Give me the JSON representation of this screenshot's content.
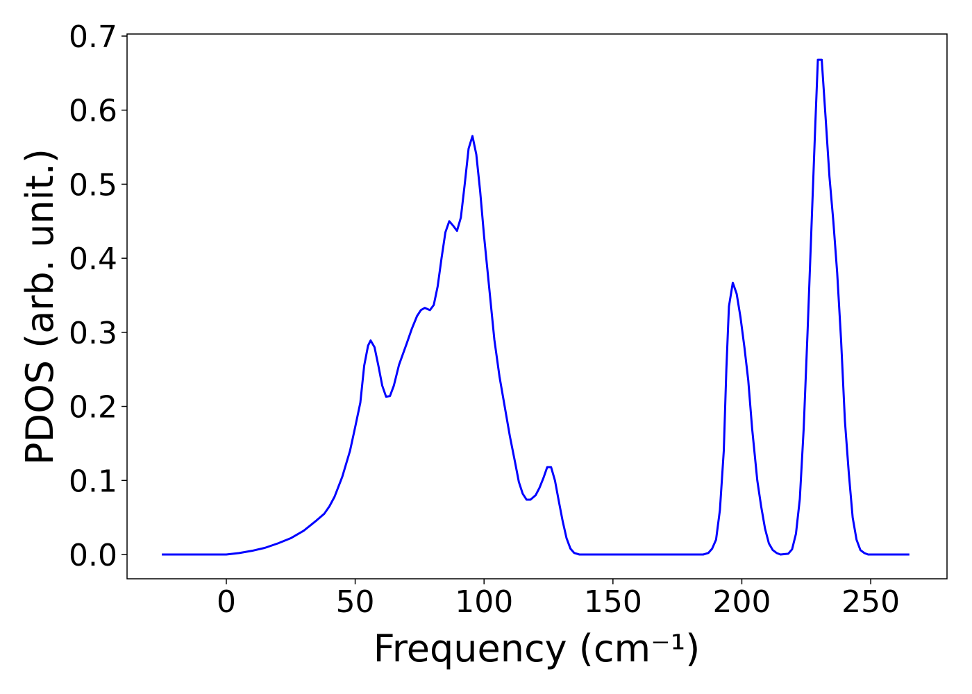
{
  "chart_data": {
    "type": "line",
    "xlabel": "Frequency (cm⁻¹)",
    "ylabel": "PDOS (arb. unit.)",
    "color": "#0000ff",
    "x": [
      -25,
      0,
      5,
      10,
      15,
      20,
      25,
      30,
      35,
      38,
      40,
      42,
      45,
      48,
      50,
      52,
      53.5,
      55,
      56,
      57.5,
      59,
      60.5,
      62,
      63.5,
      65,
      67,
      70,
      72,
      74,
      75.5,
      77,
      79,
      80.5,
      82,
      83.5,
      85,
      86.5,
      88,
      89.5,
      91,
      92.5,
      94,
      95.5,
      97,
      98.5,
      100,
      102,
      104,
      106,
      108,
      110,
      112,
      113.5,
      115,
      116.5,
      118,
      120,
      121.5,
      123,
      124.5,
      126,
      127.5,
      129,
      130.5,
      132,
      133.5,
      135,
      137,
      185,
      187,
      188.5,
      190,
      191.5,
      193,
      194,
      195,
      196.5,
      198,
      199.5,
      201,
      202.5,
      204,
      206,
      207.5,
      209,
      210.5,
      212,
      213.5,
      215,
      218,
      219.5,
      221,
      222.5,
      224,
      225.5,
      227,
      228.5,
      229.5,
      231,
      232.5,
      234,
      235.5,
      237,
      238.5,
      240,
      241.5,
      243,
      244.5,
      246,
      247.5,
      249,
      265
    ],
    "values": [
      0,
      0,
      0.002,
      0.005,
      0.009,
      0.015,
      0.022,
      0.032,
      0.046,
      0.055,
      0.065,
      0.078,
      0.105,
      0.14,
      0.172,
      0.205,
      0.255,
      0.282,
      0.289,
      0.28,
      0.255,
      0.228,
      0.213,
      0.214,
      0.228,
      0.256,
      0.285,
      0.305,
      0.322,
      0.33,
      0.333,
      0.33,
      0.337,
      0.362,
      0.4,
      0.435,
      0.45,
      0.444,
      0.437,
      0.455,
      0.5,
      0.548,
      0.565,
      0.54,
      0.49,
      0.43,
      0.36,
      0.29,
      0.24,
      0.2,
      0.16,
      0.125,
      0.098,
      0.082,
      0.074,
      0.074,
      0.08,
      0.09,
      0.103,
      0.118,
      0.118,
      0.1,
      0.072,
      0.045,
      0.022,
      0.008,
      0.002,
      0,
      0,
      0.002,
      0.008,
      0.02,
      0.06,
      0.14,
      0.25,
      0.335,
      0.367,
      0.352,
      0.32,
      0.28,
      0.235,
      0.17,
      0.1,
      0.065,
      0.035,
      0.015,
      0.006,
      0.002,
      0,
      0.001,
      0.007,
      0.028,
      0.075,
      0.17,
      0.3,
      0.44,
      0.58,
      0.668,
      0.668,
      0.59,
      0.51,
      0.45,
      0.38,
      0.29,
      0.18,
      0.11,
      0.05,
      0.02,
      0.006,
      0.002,
      0,
      0
    ],
    "xlim": [
      -38.5,
      279.6
    ],
    "ylim": [
      -0.0328,
      0.7028
    ],
    "xticks": [
      0,
      50,
      100,
      150,
      200,
      250
    ],
    "yticks": [
      {
        "value": 0,
        "label": "0.0"
      },
      0.1,
      0.2,
      0.3,
      0.4,
      0.5,
      0.6,
      0.7
    ],
    "grid": false
  }
}
